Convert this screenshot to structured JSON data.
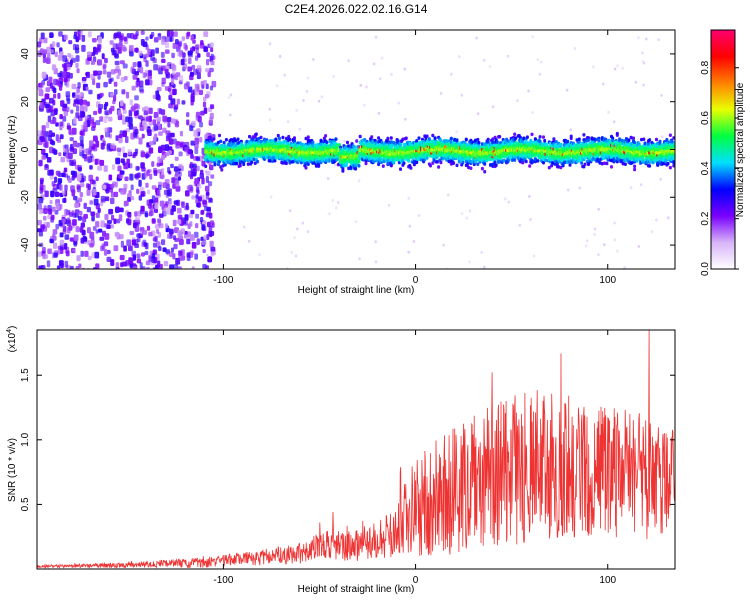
{
  "title": "C2E4.2026.022.02.16.G14",
  "chart_data": [
    {
      "type": "heatmap",
      "name": "spectrogram",
      "xlabel": "Height of straight line (km)",
      "ylabel": "Frequency (Hz)",
      "xlim": [
        -197,
        135
      ],
      "ylim": [
        -50,
        50
      ],
      "xticks": [
        -100,
        0,
        100
      ],
      "xtick_labels": [
        "-100",
        "0",
        "100"
      ],
      "yticks": [
        -40,
        -20,
        0,
        20,
        40
      ],
      "ytick_labels": [
        "-40",
        "-20",
        "0",
        "20",
        "40"
      ],
      "noise_region_end_km": -110,
      "signal_band_center_hz": 0,
      "signal_band_halfwidth_hz": 6,
      "colorbar": {
        "label": "Normalized spectral amplitude",
        "range": [
          0.0,
          0.95
        ],
        "ticks": [
          0.0,
          0.2,
          0.4,
          0.6,
          0.8
        ],
        "tick_labels": [
          "0.0",
          "0.2",
          "0.4",
          "0.6",
          "0.8"
        ],
        "colors": [
          "#ffffff",
          "#d8b4f8",
          "#7a00ff",
          "#0000ff",
          "#00e0ff",
          "#00ff40",
          "#e8ff00",
          "#ff8000",
          "#ff0000",
          "#ff0070"
        ]
      }
    },
    {
      "type": "line",
      "name": "snr",
      "xlabel": "Height of straight line (km)",
      "ylabel": "SNR (10 * v/v)",
      "scale_label": "(x10",
      "scale_exp": "4",
      "scale_close": ")",
      "xlim": [
        -197,
        135
      ],
      "ylim": [
        0,
        1.85
      ],
      "xticks": [
        -100,
        0,
        100
      ],
      "xtick_labels": [
        "-100",
        "0",
        "100"
      ],
      "yticks": [
        0.5,
        1.0,
        1.5
      ],
      "ytick_labels": [
        "0.5",
        "1.0",
        "1.5"
      ],
      "line_color": "#ee3333",
      "envelope": {
        "x": [
          -197,
          -150,
          -110,
          -80,
          -60,
          -45,
          -35,
          -20,
          -10,
          -5,
          0,
          20,
          40,
          60,
          80,
          100,
          120,
          135
        ],
        "mean": [
          0.02,
          0.03,
          0.05,
          0.09,
          0.12,
          0.2,
          0.18,
          0.22,
          0.28,
          0.4,
          0.48,
          0.6,
          0.72,
          0.8,
          0.78,
          0.75,
          0.72,
          0.7
        ],
        "amplitude": [
          0.01,
          0.02,
          0.04,
          0.06,
          0.08,
          0.12,
          0.12,
          0.15,
          0.2,
          0.3,
          0.4,
          0.5,
          0.55,
          0.6,
          0.55,
          0.5,
          0.5,
          0.45
        ]
      }
    }
  ]
}
